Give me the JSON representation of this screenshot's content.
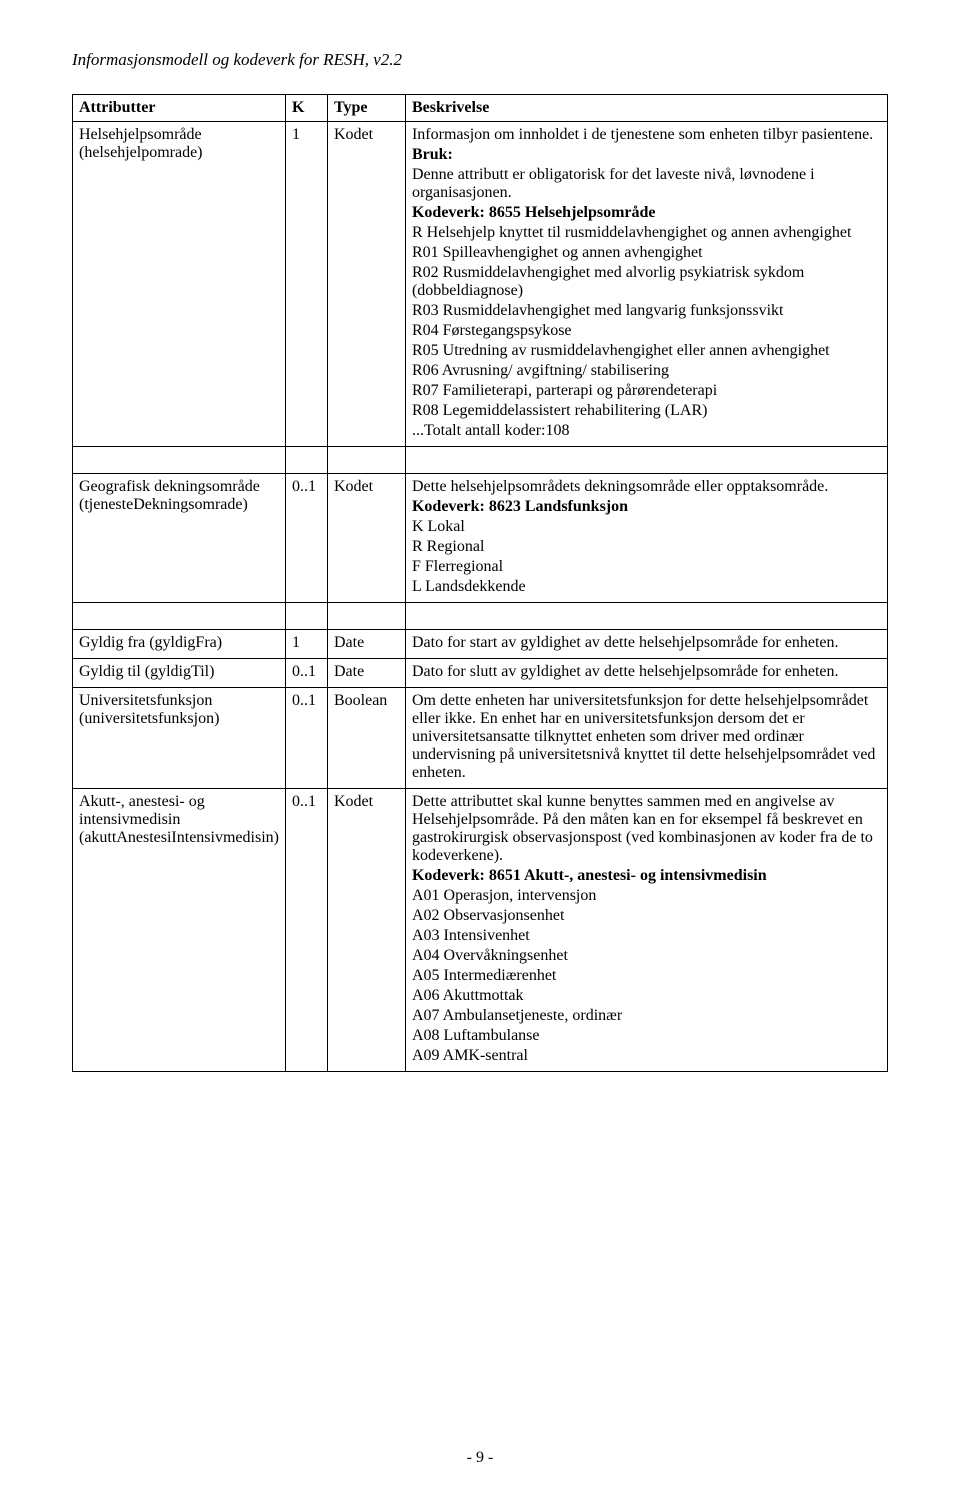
{
  "doc_title": "Informasjonsmodell og kodeverk for RESH, v2.2",
  "page_number": "- 9 -",
  "table": {
    "headers": {
      "attr": "Attributter",
      "k": "K",
      "type": "Type",
      "desc": "Beskrivelse"
    },
    "rows": [
      {
        "attr": "Helsehjelpsområde (helsehjelpomrade)",
        "k": "1",
        "type": "Kodet",
        "desc": {
          "intro": "Informasjon om innholdet i de tjenestene som enheten tilbyr pasientene.",
          "bruk_label": "Bruk:",
          "bruk": "Denne attributt er obligatorisk for det laveste nivå, løvnodene i organisasjonen.",
          "kodeverk_label": "Kodeverk: 8655 Helsehjelpsområde",
          "lines": [
            "R Helsehjelp knyttet til rusmiddelavhengighet og annen avhengighet",
            "R01 Spilleavhengighet og annen avhengighet",
            "R02 Rusmiddelavhengighet med alvorlig psykiatrisk sykdom (dobbeldiagnose)",
            "R03 Rusmiddelavhengighet med langvarig funksjonssvikt",
            "R04 Førstegangspsykose",
            "R05 Utredning av rusmiddelavhengighet eller annen avhengighet",
            "R06 Avrusning/ avgiftning/ stabilisering",
            "R07 Familieterapi, parterapi og pårørendeterapi",
            "R08 Legemiddelassistert rehabilitering (LAR)",
            "...Totalt antall koder:108"
          ]
        }
      },
      {
        "attr": "Geografisk dekningsområde (tjenesteDekningsomrade)",
        "k": "0..1",
        "type": "Kodet",
        "desc": {
          "intro": "Dette helsehjelpsområdets dekningsområde eller opptaksområde.",
          "kodeverk_label": "Kodeverk: 8623 Landsfunksjon",
          "lines": [
            "K Lokal",
            "R Regional",
            "F Flerregional",
            "L Landsdekkende"
          ]
        }
      },
      {
        "attr": "Gyldig fra (gyldigFra)",
        "k": "1",
        "type": "Date",
        "desc": {
          "intro": "Dato for start av gyldighet av dette helsehjelpsområde for enheten."
        }
      },
      {
        "attr": "Gyldig til (gyldigTil)",
        "k": "0..1",
        "type": "Date",
        "desc": {
          "intro": "Dato for slutt av gyldighet av dette helsehjelpsområde for enheten."
        }
      },
      {
        "attr": "Universitetsfunksjon (universitetsfunksjon)",
        "k": "0..1",
        "type": "Boolean",
        "desc": {
          "intro": "Om dette enheten har universitetsfunksjon for dette helsehjelpsområdet eller ikke. En enhet har en universitetsfunksjon dersom det er universitetsansatte tilknyttet enheten som driver med ordinær undervisning på universitetsnivå knyttet til dette helsehjelpsområdet ved enheten."
        }
      },
      {
        "attr": "Akutt-, anestesi- og intensivmedisin (akuttAnestesiIntensivmedisin)",
        "k": "0..1",
        "type": "Kodet",
        "desc": {
          "intro": "Dette attributtet skal kunne benyttes sammen med en angivelse av Helsehjelpsområde. På den måten kan en for eksempel få beskrevet en gastrokirurgisk observasjonspost (ved kombinasjonen av koder fra de to kodeverkene).",
          "kodeverk_label": "Kodeverk: 8651 Akutt-, anestesi- og intensivmedisin",
          "lines": [
            "A01 Operasjon, intervensjon",
            "A02 Observasjonsenhet",
            "A03 Intensivenhet",
            "A04 Overvåkningsenhet",
            "A05 Intermediærenhet",
            "A06 Akuttmottak",
            "A07 Ambulansetjeneste, ordinær",
            "A08 Luftambulanse",
            "A09 AMK-sentral"
          ]
        }
      }
    ]
  }
}
